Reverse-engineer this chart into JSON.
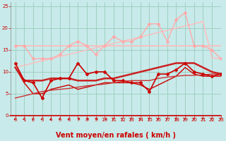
{
  "title": "",
  "xlabel": "Vent moyen/en rafales ( km/h )",
  "ylabel": "",
  "xlim": [
    -0.5,
    23
  ],
  "ylim": [
    0,
    26
  ],
  "yticks": [
    0,
    5,
    10,
    15,
    20,
    25
  ],
  "xticks": [
    0,
    1,
    2,
    3,
    4,
    5,
    6,
    7,
    8,
    9,
    10,
    11,
    12,
    13,
    14,
    15,
    16,
    17,
    18,
    19,
    20,
    21,
    22,
    23
  ],
  "bg_color": "#c8eaea",
  "grid_color": "#99ccbb",
  "line1_y": [
    16,
    16,
    16,
    16,
    16,
    16,
    16,
    16,
    16,
    16,
    16,
    16,
    16,
    16,
    16,
    16,
    16,
    16,
    16,
    16,
    16,
    16,
    16,
    16
  ],
  "line1_color": "#ffbbbb",
  "line1_lw": 1.2,
  "line2_y": [
    11,
    11.5,
    12,
    12.5,
    13,
    13.5,
    14,
    14.5,
    15,
    15.5,
    16,
    16.5,
    17,
    17.5,
    18,
    18.5,
    19,
    19.5,
    20,
    20.5,
    21,
    21.5,
    13.2,
    13.0
  ],
  "line2_color": "#ffbbbb",
  "line2_lw": 1.0,
  "line3_y": [
    16,
    16,
    13,
    13,
    13,
    14,
    16,
    17,
    16,
    14,
    16,
    18,
    17,
    17,
    18,
    21,
    21,
    17,
    22,
    23.5,
    16,
    16,
    15,
    13
  ],
  "line3_color": "#ffaaaa",
  "line3_lw": 1.0,
  "line3_marker": "D",
  "line3_ms": 2,
  "line4_y": [
    11,
    8,
    8,
    8,
    8.5,
    8.5,
    8.5,
    8,
    8,
    8,
    8.5,
    8.5,
    9,
    9.5,
    10,
    10.5,
    11,
    11.5,
    12,
    12,
    12,
    11,
    10,
    9.5
  ],
  "line4_color": "#cc2222",
  "line4_lw": 1.8,
  "line5_y": [
    12,
    8,
    7.5,
    4,
    8,
    8.5,
    8.5,
    12,
    9.5,
    10,
    10,
    8,
    8,
    7.5,
    7.5,
    5.5,
    9.5,
    9.5,
    10.5,
    12,
    10,
    9.5,
    9,
    9.5
  ],
  "line5_color": "#cc0000",
  "line5_lw": 1.2,
  "line5_marker": "D",
  "line5_ms": 2,
  "line6_y": [
    11,
    7.5,
    5,
    5,
    6,
    6.5,
    7,
    6,
    6.5,
    7,
    7.5,
    7.5,
    7.5,
    7.5,
    7,
    6,
    7,
    8,
    9,
    11,
    9.5,
    9,
    9,
    9
  ],
  "line6_color": "#cc0000",
  "line6_lw": 1.0,
  "line7_y": [
    4,
    4.5,
    5,
    5.5,
    5.8,
    6,
    6.2,
    6.5,
    6.8,
    7,
    7.2,
    7.5,
    7.8,
    8,
    8,
    8,
    8.5,
    8.8,
    9,
    9.2,
    9.2,
    9.3,
    9.5,
    9.5
  ],
  "line7_color": "#cc3333",
  "line7_lw": 1.0,
  "xlabel_color": "#cc0000",
  "xlabel_fontsize": 7,
  "tick_color": "#cc0000",
  "tick_fontsize": 5,
  "arrow_color": "#cc0000",
  "arrow_angles": [
    225,
    225,
    225,
    225,
    225,
    225,
    225,
    270,
    270,
    270,
    270,
    315,
    315,
    315,
    315,
    315,
    315,
    315,
    315,
    315,
    315,
    315,
    315,
    315
  ]
}
